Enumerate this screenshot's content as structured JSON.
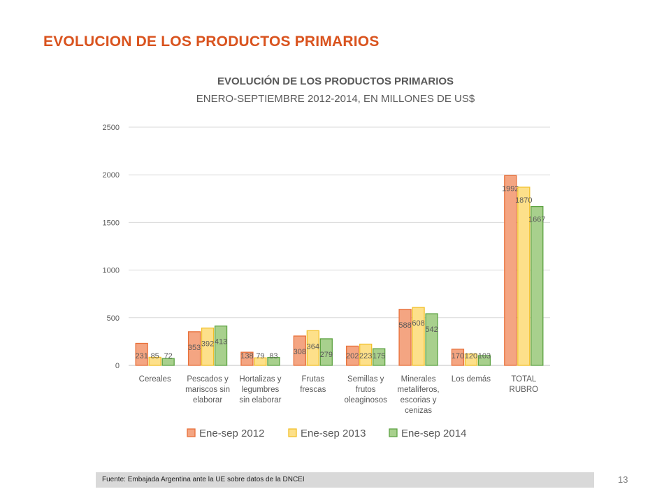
{
  "slide": {
    "title": "EVOLUCION DE LOS PRODUCTOS PRIMARIOS",
    "source": "Fuente: Embajada  Argentina ante la UE sobre datos de la DNCEI",
    "page_number": "13"
  },
  "chart_data": {
    "type": "bar",
    "title": "EVOLUCIÓN DE LOS PRODUCTOS PRIMARIOS",
    "subtitle": "ENERO-SEPTIEMBRE 2012-2014, EN MILLONES DE US$",
    "xlabel": "",
    "ylabel": "",
    "ylim": [
      0,
      2500
    ],
    "yticks": [
      0,
      500,
      1000,
      1500,
      2000,
      2500
    ],
    "grid": true,
    "legend_position": "bottom",
    "categories": [
      [
        "Cereales"
      ],
      [
        "Pescados y",
        "mariscos sin",
        "elaborar"
      ],
      [
        "Hortalizas y",
        "legumbres",
        "sin elaborar"
      ],
      [
        "Frutas",
        "frescas"
      ],
      [
        "Semillas y",
        "frutos",
        "oleaginosos"
      ],
      [
        "Minerales",
        "metalíferos,",
        "escorias y",
        "cenizas"
      ],
      [
        "Los demás"
      ],
      [
        "TOTAL",
        "RUBRO"
      ]
    ],
    "series": [
      {
        "name": "Ene-sep 2012",
        "color": "#f4a582",
        "border": "#e8703a",
        "values": [
          231,
          353,
          138,
          308,
          202,
          588,
          170,
          1992
        ]
      },
      {
        "name": "Ene-sep 2013",
        "color": "#fde08a",
        "border": "#f2c029",
        "values": [
          85,
          392,
          79,
          364,
          223,
          608,
          120,
          1870
        ]
      },
      {
        "name": "Ene-sep 2014",
        "color": "#a8d08d",
        "border": "#5ea344",
        "values": [
          72,
          413,
          83,
          279,
          175,
          542,
          103,
          1667
        ]
      }
    ]
  }
}
